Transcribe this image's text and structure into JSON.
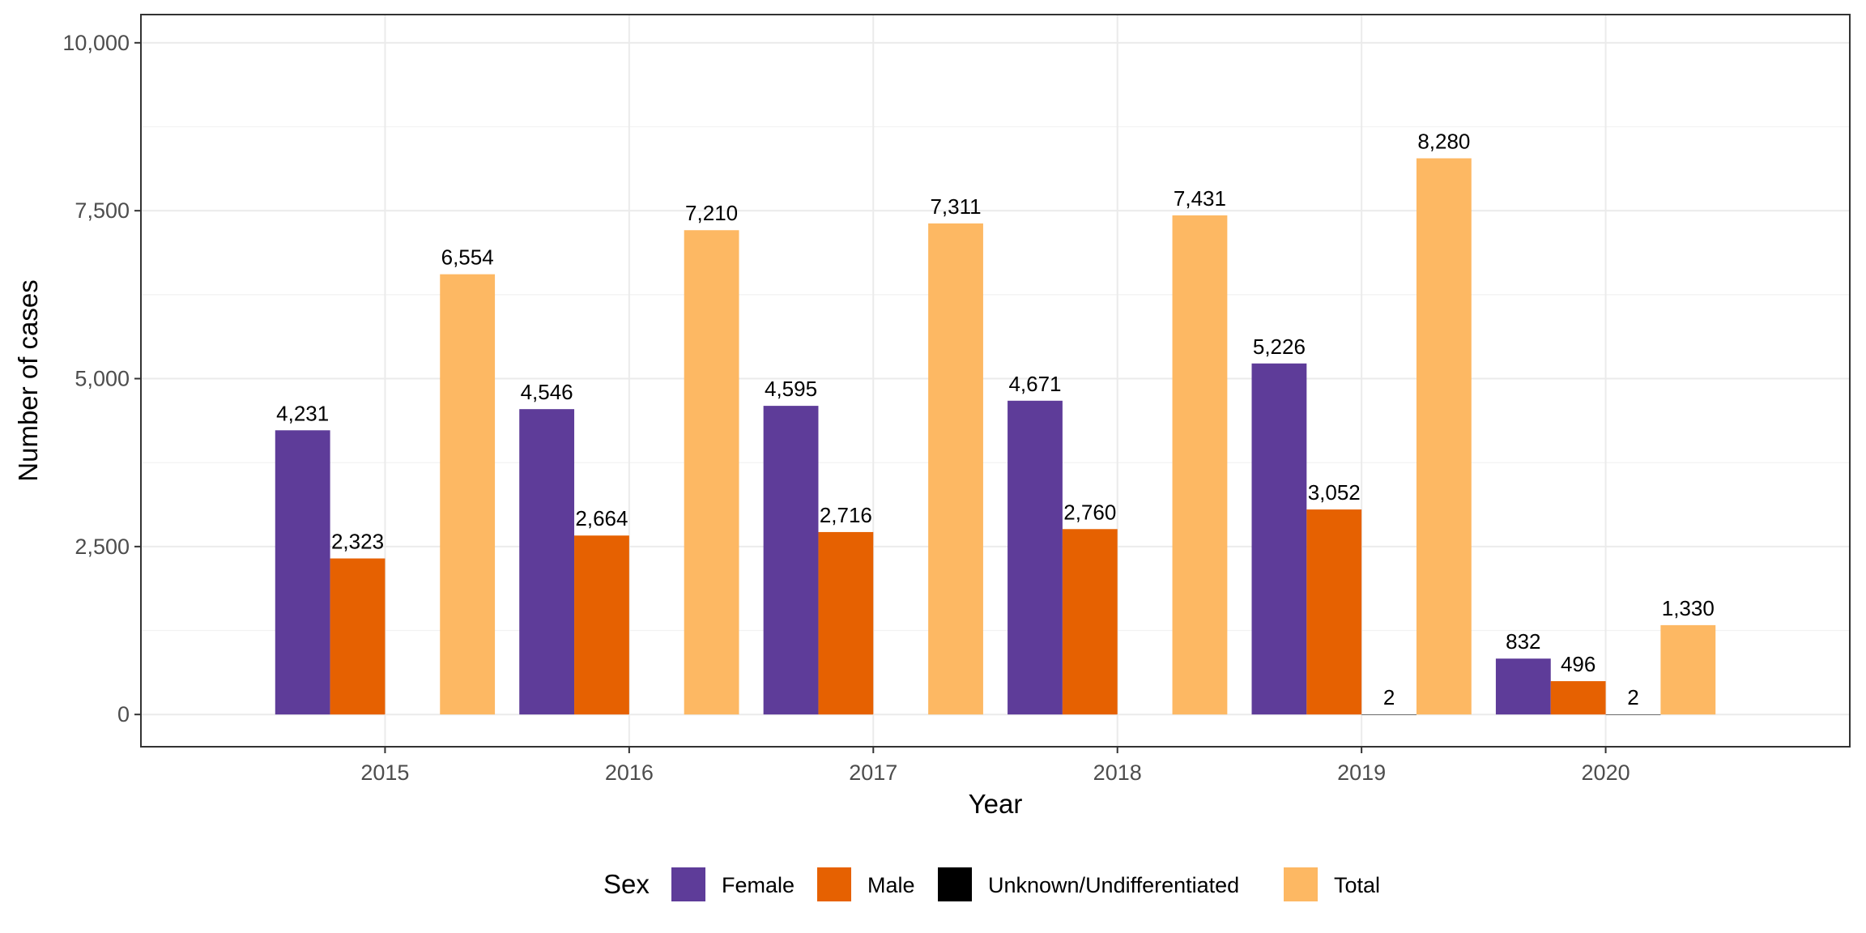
{
  "chart_data": {
    "type": "bar",
    "title": "",
    "xlabel": "Year",
    "ylabel": "Number of cases",
    "categories": [
      "2015",
      "2016",
      "2017",
      "2018",
      "2019",
      "2020"
    ],
    "series": [
      {
        "name": "Female",
        "values": [
          4231,
          4546,
          4595,
          4671,
          5226,
          832
        ],
        "labels": [
          "4,231",
          "4,546",
          "4,595",
          "4,671",
          "5,226",
          "832"
        ],
        "color": "#5E3C99"
      },
      {
        "name": "Male",
        "values": [
          2323,
          2664,
          2716,
          2760,
          3052,
          496
        ],
        "labels": [
          "2,323",
          "2,664",
          "2,716",
          "2,760",
          "3,052",
          "496"
        ],
        "color": "#E66101"
      },
      {
        "name": "Unknown/Undifferentiated",
        "values": [
          null,
          null,
          null,
          null,
          2,
          2
        ],
        "labels": [
          "",
          "",
          "",
          "",
          "2",
          "2"
        ],
        "color": "#000000"
      },
      {
        "name": "Total",
        "values": [
          6554,
          7210,
          7311,
          7431,
          8280,
          1330
        ],
        "labels": [
          "6,554",
          "7,210",
          "7,311",
          "7,431",
          "8,280",
          "1,330"
        ],
        "color": "#FDB863"
      }
    ],
    "ylim": [
      -480,
      10420
    ],
    "yticks": [
      0,
      2500,
      5000,
      7500,
      10000
    ],
    "ytick_labels": [
      "0",
      "2,500",
      "5,000",
      "7,500",
      "10,000"
    ],
    "grid": true,
    "legend": {
      "title": "Sex",
      "position": "bottom"
    }
  }
}
